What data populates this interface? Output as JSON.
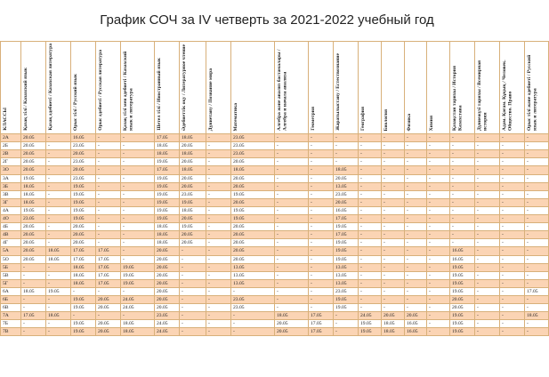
{
  "title": "График СОЧ за IV четверть за 2021-2022 учебный год",
  "headers": [
    "КЛАССЫ",
    "Қазақ тілі / Казахский язык",
    "Қазақ әдебиеті / Казахская литература",
    "Орыс тілі / Русский язык",
    "Орыс әдебиеті / Русская литература",
    "Қазақ тілі мен әдебиеті / Казахский язык и литература",
    "Шетел тілі / Иностранный язык",
    "Әдебиеттік оқу / Литературное чтение",
    "Дүниетану / Познание мира",
    "Математика",
    "Алгебра және анализ бастамалары / Алгебра и начала анализа",
    "Геометрия",
    "Жаратылыстану / Естествознание",
    "География",
    "Биология",
    "Физика",
    "Химия",
    "Қазақстан тарихы / История Казахстана",
    "Дүниежүзі тарихы / Всемирная история",
    "Адам. Қоғам. Құқық / Человек. Общество. Право",
    "Орыс тілі және әдебиеті / Русский язык и литература"
  ],
  "rows": [
    [
      "2А",
      "20.05",
      "-",
      "16.05",
      "-",
      "-",
      "17.05",
      "18.05",
      "-",
      "23.05",
      "-",
      "-",
      "-",
      "-",
      "-",
      "-",
      "-",
      "-",
      "-",
      "-",
      "-"
    ],
    [
      "2Б",
      "20.05",
      "-",
      "23.05",
      "-",
      "-",
      "18.05",
      "20.05",
      "-",
      "23.05",
      "-",
      "-",
      "-",
      "-",
      "-",
      "-",
      "-",
      "-",
      "-",
      "-",
      "-"
    ],
    [
      "2В",
      "20.05",
      "-",
      "20.05",
      "-",
      "-",
      "18.05",
      "18.05",
      "-",
      "23.05",
      "-",
      "-",
      "-",
      "-",
      "-",
      "-",
      "-",
      "-",
      "-",
      "-",
      "-"
    ],
    [
      "2Г",
      "20.05",
      "-",
      "23.05",
      "-",
      "-",
      "19.05",
      "20.05",
      "-",
      "20.05",
      "-",
      "-",
      "-",
      "-",
      "-",
      "-",
      "-",
      "-",
      "-",
      "-",
      "-"
    ],
    [
      "3О",
      "20.05",
      "-",
      "20.05",
      "-",
      "-",
      "17.05",
      "18.05",
      "-",
      "18.05",
      "-",
      "-",
      "18.05",
      "-",
      "-",
      "-",
      "-",
      "-",
      "-",
      "-",
      "-"
    ],
    [
      "3А",
      "19.05",
      "-",
      "23.05",
      "-",
      "-",
      "19.05",
      "20.05",
      "-",
      "20.05",
      "-",
      "-",
      "20.05",
      "-",
      "-",
      "-",
      "-",
      "-",
      "-",
      "-",
      "-"
    ],
    [
      "3Б",
      "18.05",
      "-",
      "19.05",
      "-",
      "-",
      "19.05",
      "20.05",
      "-",
      "20.05",
      "-",
      "-",
      "13.05",
      "-",
      "-",
      "-",
      "-",
      "-",
      "-",
      "-",
      "-"
    ],
    [
      "3В",
      "18.05",
      "-",
      "19.05",
      "-",
      "-",
      "19.05",
      "23.05",
      "-",
      "19.05",
      "-",
      "-",
      "23.05",
      "-",
      "-",
      "-",
      "-",
      "-",
      "-",
      "-",
      "-"
    ],
    [
      "3Г",
      "18.05",
      "-",
      "19.05",
      "-",
      "-",
      "19.05",
      "19.05",
      "-",
      "20.05",
      "-",
      "-",
      "20.05",
      "-",
      "-",
      "-",
      "-",
      "-",
      "-",
      "-",
      "-"
    ],
    [
      "4А",
      "19.05",
      "-",
      "19.05",
      "-",
      "-",
      "19.05",
      "18.05",
      "-",
      "19.05",
      "-",
      "-",
      "16.05",
      "-",
      "-",
      "-",
      "-",
      "-",
      "-",
      "-",
      "-"
    ],
    [
      "4О",
      "23.05",
      "-",
      "19.05",
      "-",
      "-",
      "19.05",
      "20.05",
      "-",
      "19.05",
      "-",
      "-",
      "17.05",
      "-",
      "-",
      "-",
      "-",
      "-",
      "-",
      "-",
      "-"
    ],
    [
      "4Б",
      "20.05",
      "-",
      "20.05",
      "-",
      "-",
      "18.05",
      "19.05",
      "-",
      "20.05",
      "-",
      "-",
      "19.05",
      "-",
      "-",
      "-",
      "-",
      "-",
      "-",
      "-",
      "-"
    ],
    [
      "4В",
      "20.05",
      "-",
      "20.05",
      "-",
      "-",
      "18.05",
      "20.05",
      "-",
      "20.05",
      "-",
      "-",
      "17.05",
      "-",
      "-",
      "-",
      "-",
      "-",
      "-",
      "-",
      "-"
    ],
    [
      "4Г",
      "20.05",
      "-",
      "20.05",
      "-",
      "-",
      "18.05",
      "20.05",
      "-",
      "20.05",
      "-",
      "-",
      "19.05",
      "-",
      "-",
      "-",
      "-",
      "-",
      "-",
      "-",
      "-"
    ],
    [
      "5А",
      "20.05",
      "18.05",
      "17.05",
      "17.05",
      "-",
      "20.05",
      "-",
      "-",
      "20.05",
      "-",
      "-",
      "19.05",
      "-",
      "-",
      "-",
      "-",
      "16.05",
      "-",
      "-",
      "-"
    ],
    [
      "5О",
      "20.05",
      "18.05",
      "17.05",
      "17.05",
      "-",
      "20.05",
      "-",
      "-",
      "20.05",
      "-",
      "-",
      "19.05",
      "-",
      "-",
      "-",
      "-",
      "16.05",
      "-",
      "-",
      "-"
    ],
    [
      "5Б",
      "-",
      "-",
      "18.05",
      "17.05",
      "19.05",
      "20.05",
      "-",
      "-",
      "13.05",
      "-",
      "-",
      "13.05",
      "-",
      "-",
      "-",
      "-",
      "19.05",
      "-",
      "-",
      "-"
    ],
    [
      "5В",
      "-",
      "-",
      "18.05",
      "17.05",
      "19.05",
      "20.05",
      "-",
      "-",
      "13.05",
      "-",
      "-",
      "13.05",
      "-",
      "-",
      "-",
      "-",
      "19.05",
      "-",
      "-",
      "-"
    ],
    [
      "5Г",
      "-",
      "-",
      "18.05",
      "17.05",
      "19.05",
      "20.05",
      "-",
      "-",
      "13.05",
      "-",
      "-",
      "13.05",
      "-",
      "-",
      "-",
      "-",
      "19.05",
      "-",
      "-",
      "-"
    ],
    [
      "6А",
      "18.05",
      "19.05",
      "-",
      "-",
      "-",
      "20.05",
      "-",
      "-",
      "-",
      "-",
      "-",
      "23.05",
      "-",
      "-",
      "-",
      "-",
      "19.05",
      "-",
      "-",
      "17.05"
    ],
    [
      "6Б",
      "-",
      "-",
      "19.05",
      "20.05",
      "24.05",
      "20.05",
      "-",
      "-",
      "23.05",
      "-",
      "-",
      "19.05",
      "-",
      "-",
      "-",
      "-",
      "20.05",
      "-",
      "-",
      "-"
    ],
    [
      "6В",
      "-",
      "-",
      "19.05",
      "20.05",
      "24.05",
      "20.05",
      "-",
      "-",
      "23.05",
      "-",
      "-",
      "19.05",
      "-",
      "-",
      "-",
      "-",
      "20.05",
      "-",
      "-",
      "-"
    ],
    [
      "7А",
      "17.05",
      "18.05",
      "-",
      "-",
      "-",
      "23.05",
      "-",
      "-",
      "-",
      "18.05",
      "17.05",
      "-",
      "24.05",
      "20.05",
      "20.05",
      "-",
      "19.05",
      "-",
      "-",
      "18.05"
    ],
    [
      "7Б",
      "-",
      "-",
      "19.05",
      "20.05",
      "18.05",
      "24.05",
      "-",
      "-",
      "-",
      "20.05",
      "17.05",
      "-",
      "19.05",
      "18.05",
      "16.05",
      "-",
      "19.05",
      "-",
      "-",
      "-"
    ],
    [
      "7В",
      "-",
      "-",
      "19.05",
      "20.05",
      "18.05",
      "24.05",
      "-",
      "-",
      "-",
      "20.05",
      "17.05",
      "-",
      "19.05",
      "18.05",
      "16.05",
      "-",
      "19.05",
      "-",
      "-",
      "-"
    ]
  ]
}
